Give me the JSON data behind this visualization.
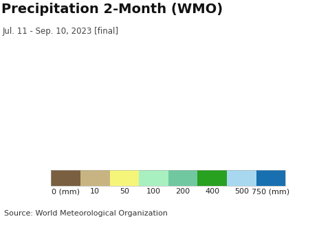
{
  "title": "Precipitation 2-Month (WMO)",
  "subtitle": "Jul. 11 - Sep. 10, 2023 [final]",
  "source": "Source: World Meteorological Organization",
  "colorbar_labels": [
    "0 (mm)",
    "10",
    "50",
    "100",
    "200",
    "400",
    "500",
    "750 (mm)"
  ],
  "colorbar_colors": [
    "#7a6040",
    "#c8b482",
    "#f5f57a",
    "#a8f0c0",
    "#70c8a0",
    "#28a020",
    "#a8d8f0",
    "#1870b0"
  ],
  "colorbar_boundaries": [
    0,
    10,
    50,
    100,
    200,
    400,
    500,
    750,
    9999
  ],
  "ocean_color": "#c8f0f8",
  "land_color": "#c8b482",
  "background_color": "#ffffff",
  "source_bg_color": "#e8e8e8",
  "title_fontsize": 14,
  "subtitle_fontsize": 8.5,
  "source_fontsize": 8,
  "colorbar_label_fontsize": 8,
  "fig_width": 4.8,
  "fig_height": 3.34,
  "dpi": 100
}
